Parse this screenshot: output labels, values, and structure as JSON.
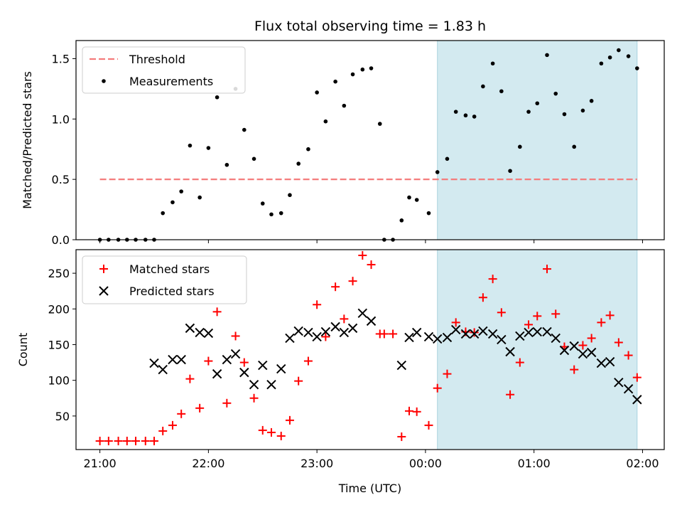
{
  "chart_data": [
    {
      "type": "scatter",
      "title": "Flux total observing time = 1.83 h",
      "ylabel": "Matched/Predicted stars",
      "xlabel": "",
      "ylim": [
        0,
        1.65
      ],
      "yticks": [
        0.0,
        0.5,
        1.0,
        1.5
      ],
      "ytick_labels": [
        "0.0",
        "0.5",
        "1.0",
        "1.5"
      ],
      "xlim_hours": [
        -3.22,
        2.2
      ],
      "xticks_hours": [
        -3,
        -2,
        -1,
        0,
        1,
        2
      ],
      "shaded_region_hours": [
        0.11,
        1.95
      ],
      "shaded_color": "#d3eaf0",
      "legend": {
        "placement": "upper-left",
        "entries": [
          "Threshold",
          "Measurements"
        ]
      },
      "threshold": {
        "name": "Threshold",
        "value": 0.5,
        "x_range_hours": [
          -3.0,
          1.95
        ],
        "color": "#f47c7c"
      },
      "series": [
        {
          "name": "Measurements",
          "color": "#000000",
          "x_hours": [
            -3.0,
            -2.92,
            -2.83,
            -2.75,
            -2.67,
            -2.58,
            -2.5,
            -2.42,
            -2.33,
            -2.25,
            -2.17,
            -2.08,
            -2.0,
            -1.92,
            -1.83,
            -1.75,
            -1.67,
            -1.58,
            -1.5,
            -1.42,
            -1.33,
            -1.25,
            -1.17,
            -1.08,
            -1.0,
            -0.92,
            -0.83,
            -0.75,
            -0.67,
            -0.58,
            -0.5,
            -0.42,
            -0.38,
            -0.3,
            -0.22,
            -0.15,
            -0.08,
            0.03,
            0.11,
            0.2,
            0.28,
            0.37,
            0.45,
            0.53,
            0.62,
            0.7,
            0.78,
            0.87,
            0.95,
            1.03,
            1.12,
            1.2,
            1.28,
            1.37,
            1.45,
            1.53,
            1.62,
            1.7,
            1.78,
            1.87,
            1.95
          ],
          "y": [
            0.0,
            0.0,
            0.0,
            0.0,
            0.0,
            0.0,
            0.0,
            0.22,
            0.31,
            0.4,
            0.78,
            0.35,
            0.76,
            1.18,
            0.62,
            1.25,
            0.91,
            0.67,
            0.3,
            0.21,
            0.22,
            0.37,
            0.63,
            0.75,
            1.22,
            0.98,
            1.31,
            1.11,
            1.37,
            1.41,
            1.42,
            0.96,
            0.0,
            0.0,
            0.16,
            0.35,
            0.33,
            0.22,
            0.56,
            0.67,
            1.06,
            1.03,
            1.02,
            1.27,
            1.46,
            1.23,
            0.57,
            0.77,
            1.06,
            1.13,
            1.53,
            1.21,
            1.04,
            0.77,
            1.07,
            1.15,
            1.46,
            1.51,
            1.57,
            1.52,
            1.42
          ]
        }
      ]
    },
    {
      "type": "scatter",
      "title": "",
      "ylabel": "Count",
      "xlabel": "Time (UTC)",
      "ylim": [
        3,
        283
      ],
      "yticks": [
        50,
        100,
        150,
        200,
        250
      ],
      "ytick_labels": [
        "50",
        "100",
        "150",
        "200",
        "250"
      ],
      "xlim_hours": [
        -3.22,
        2.2
      ],
      "xticks_hours": [
        -3,
        -2,
        -1,
        0,
        1,
        2
      ],
      "xtick_labels": [
        "21:00",
        "22:00",
        "23:00",
        "00:00",
        "01:00",
        "02:00"
      ],
      "shaded_region_hours": [
        0.11,
        1.95
      ],
      "shaded_color": "#d3eaf0",
      "legend": {
        "placement": "upper-left",
        "entries": [
          "Matched stars",
          "Predicted stars"
        ]
      },
      "series": [
        {
          "name": "Matched stars",
          "marker": "plus",
          "color": "#ff0000",
          "x_hours": [
            -3.0,
            -2.92,
            -2.83,
            -2.75,
            -2.67,
            -2.58,
            -2.5,
            -2.42,
            -2.33,
            -2.25,
            -2.17,
            -2.08,
            -2.0,
            -1.92,
            -1.83,
            -1.75,
            -1.67,
            -1.58,
            -1.5,
            -1.42,
            -1.33,
            -1.25,
            -1.17,
            -1.08,
            -1.0,
            -0.92,
            -0.83,
            -0.75,
            -0.67,
            -0.58,
            -0.5,
            -0.42,
            -0.38,
            -0.3,
            -0.22,
            -0.15,
            -0.08,
            0.03,
            0.11,
            0.2,
            0.28,
            0.37,
            0.45,
            0.53,
            0.62,
            0.7,
            0.78,
            0.87,
            0.95,
            1.03,
            1.12,
            1.2,
            1.28,
            1.37,
            1.45,
            1.53,
            1.62,
            1.7,
            1.78,
            1.87,
            1.95
          ],
          "y": [
            15,
            15,
            15,
            15,
            15,
            15,
            15,
            29,
            37,
            53,
            102,
            61,
            127,
            196,
            68,
            162,
            125,
            75,
            30,
            27,
            22,
            44,
            99,
            127,
            206,
            161,
            231,
            186,
            239,
            275,
            262,
            165,
            165,
            165,
            21,
            57,
            56,
            37,
            89,
            109,
            181,
            168,
            167,
            216,
            242,
            195,
            80,
            125,
            178,
            190,
            256,
            193,
            147,
            115,
            149,
            159,
            181,
            191,
            153,
            135,
            104
          ]
        },
        {
          "name": "Predicted stars",
          "marker": "x",
          "color": "#000000",
          "x_hours": [
            -2.5,
            -2.42,
            -2.33,
            -2.25,
            -2.17,
            -2.08,
            -2.0,
            -1.92,
            -1.83,
            -1.75,
            -1.67,
            -1.58,
            -1.5,
            -1.42,
            -1.33,
            -1.25,
            -1.17,
            -1.08,
            -1.0,
            -0.92,
            -0.83,
            -0.75,
            -0.67,
            -0.58,
            -0.5,
            -0.22,
            -0.15,
            -0.08,
            0.03,
            0.11,
            0.2,
            0.28,
            0.37,
            0.45,
            0.53,
            0.62,
            0.7,
            0.78,
            0.87,
            0.95,
            1.03,
            1.12,
            1.2,
            1.28,
            1.37,
            1.45,
            1.53,
            1.62,
            1.7,
            1.78,
            1.87,
            1.95
          ],
          "y": [
            124,
            115,
            129,
            129,
            173,
            167,
            166,
            109,
            129,
            137,
            111,
            94,
            121,
            94,
            116,
            159,
            169,
            167,
            161,
            168,
            175,
            167,
            173,
            194,
            183,
            121,
            160,
            167,
            161,
            158,
            160,
            171,
            165,
            165,
            169,
            165,
            157,
            140,
            162,
            167,
            168,
            168,
            159,
            142,
            148,
            137,
            139,
            124,
            126,
            97,
            88,
            73
          ]
        }
      ]
    }
  ]
}
